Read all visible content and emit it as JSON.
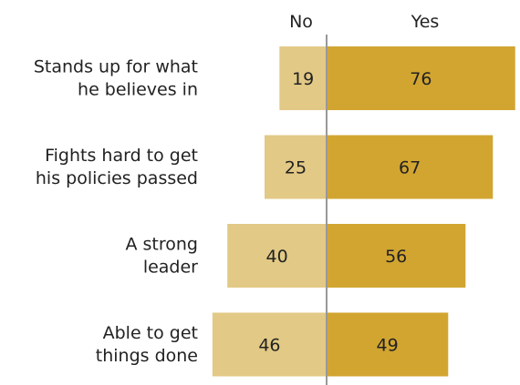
{
  "chart_data": {
    "type": "bar",
    "orientation": "diverging-horizontal",
    "column_headers": [
      "No",
      "Yes"
    ],
    "categories": [
      [
        "Stands up for what",
        "he believes in"
      ],
      [
        "Fights hard to get",
        "his policies passed"
      ],
      [
        "A strong",
        "leader"
      ],
      [
        "Able to get",
        "things done"
      ]
    ],
    "series": [
      {
        "name": "No",
        "values": [
          19,
          25,
          40,
          46
        ],
        "color": "#e2c985"
      },
      {
        "name": "Yes",
        "values": [
          76,
          67,
          56,
          49
        ],
        "color": "#d2a531"
      }
    ],
    "axis_color": "#999999",
    "grid": false,
    "legend": "top"
  }
}
